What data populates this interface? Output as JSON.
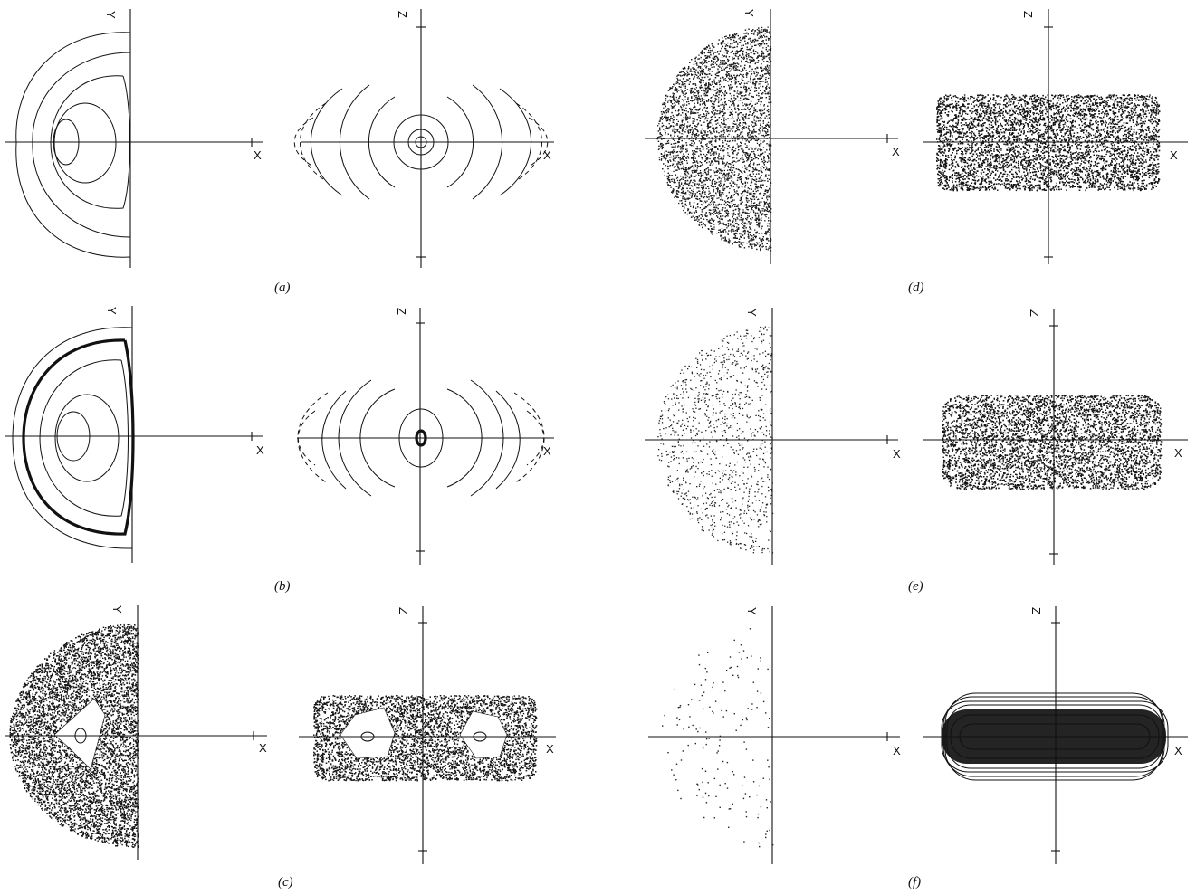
{
  "axis_labels": {
    "x": "X",
    "y": "Y",
    "z": "Z"
  },
  "captions": {
    "a": "(a)",
    "b": "(b)",
    "c": "(c)",
    "d": "(d)",
    "e": "(e)",
    "f": "(f)"
  },
  "panels": [
    {
      "id": "a",
      "section_xy": "nested closed invariant curves",
      "section_xz": "concentric arcs around the origin"
    },
    {
      "id": "b",
      "section_xy": "nested closed invariant curves with one thick chaotic band",
      "section_xz": "concentric arcs with a thick ring at the origin"
    },
    {
      "id": "c",
      "section_xy": "chaotic sea with one regular island",
      "section_xz": "chaotic sea with two regular islands"
    },
    {
      "id": "d",
      "section_xy": "dense chaotic sea",
      "section_xz": "dense chaotic sea"
    },
    {
      "id": "e",
      "section_xy": "sparse chaotic scatter",
      "section_xz": "dense dotted band"
    },
    {
      "id": "f",
      "section_xy": "very sparse scatter",
      "section_xz": "nested elongated loops"
    }
  ]
}
